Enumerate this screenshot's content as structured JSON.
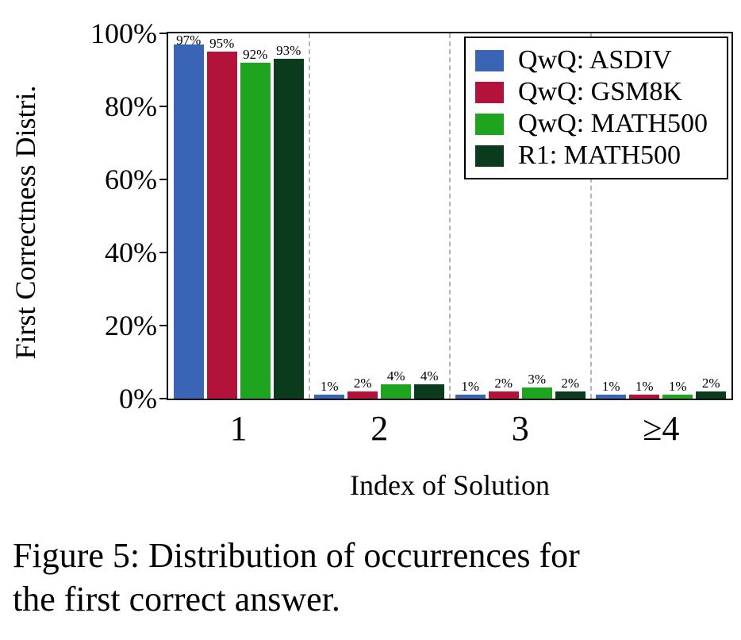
{
  "figure": {
    "caption": "Figure 5: Distribution of occurrences for\nthe first correct answer."
  },
  "chart_data": {
    "type": "bar",
    "title": "",
    "xlabel": "Index of Solution",
    "ylabel": "First Correctness Distri.",
    "categories": [
      "1",
      "2",
      "3",
      "≥4"
    ],
    "series": [
      {
        "name": "QwQ: ASDIV",
        "color": "#3A64B5",
        "values": [
          97,
          1,
          1,
          1
        ]
      },
      {
        "name": "QwQ: GSM8K",
        "color": "#B3133A",
        "values": [
          95,
          2,
          2,
          1
        ]
      },
      {
        "name": "QwQ: MATH500",
        "color": "#1FA41F",
        "values": [
          92,
          4,
          3,
          1
        ]
      },
      {
        "name": "R1: MATH500",
        "color": "#0B3B1D",
        "values": [
          93,
          4,
          2,
          2
        ]
      }
    ],
    "value_label_suffix": "%",
    "ylim": [
      0,
      100
    ],
    "yticks": [
      0,
      20,
      40,
      60,
      80,
      100
    ],
    "ytick_labels": [
      "0%",
      "20%",
      "40%",
      "60%",
      "80%",
      "100%"
    ],
    "legend_position": "upper right",
    "grid": "vertical dashed separators between category groups"
  }
}
